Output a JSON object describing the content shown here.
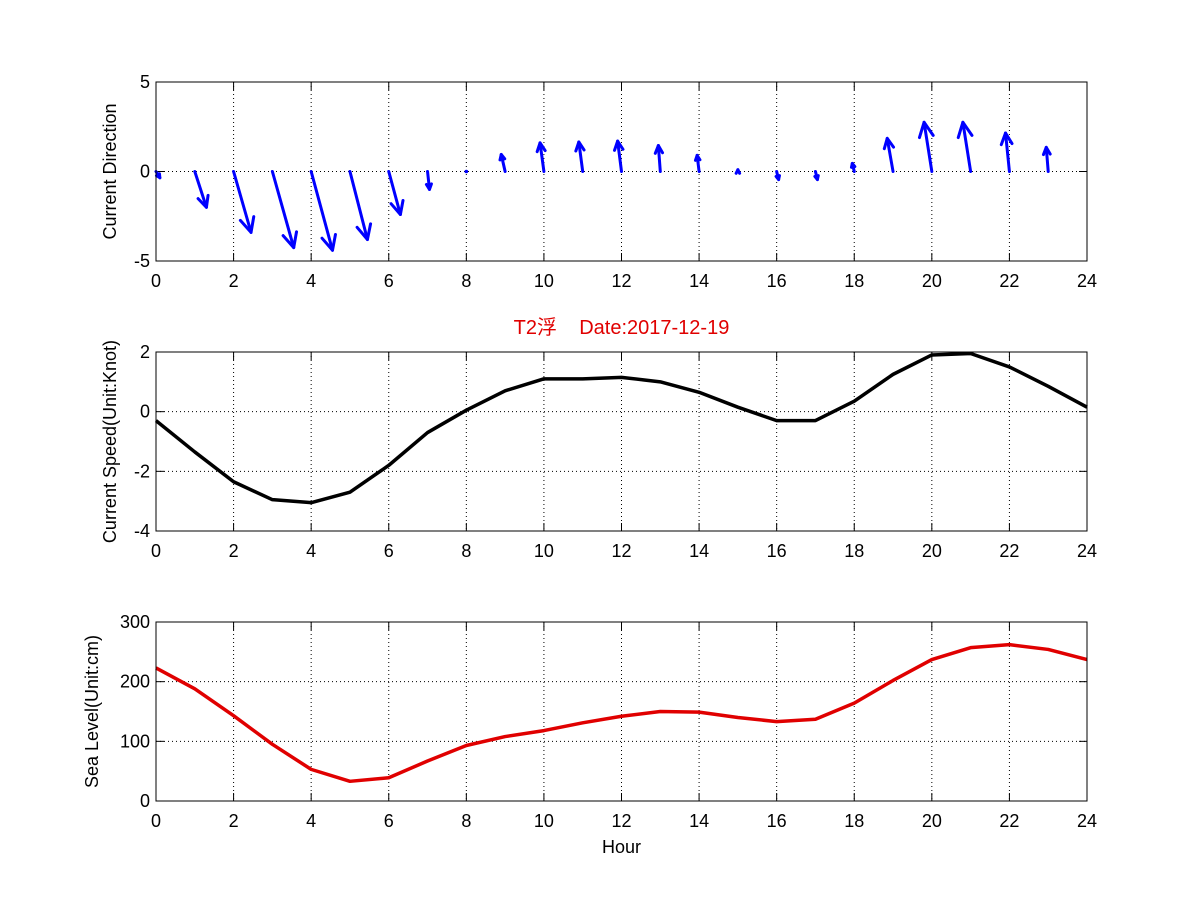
{
  "chart_data": [
    {
      "type": "quiver",
      "title": "",
      "xlabel": "",
      "ylabel": "Current Direction",
      "xlim": [
        0,
        24
      ],
      "ylim": [
        -5,
        5
      ],
      "xticks": [
        0,
        2,
        4,
        6,
        8,
        10,
        12,
        14,
        16,
        18,
        20,
        22,
        24
      ],
      "yticks": [
        -5,
        0,
        5
      ],
      "grid": true,
      "color": "#0000ff",
      "vectors": [
        {
          "x": 0,
          "u": 0.1,
          "v": -0.35
        },
        {
          "x": 1,
          "u": 0.3,
          "v": -2.0
        },
        {
          "x": 2,
          "u": 0.45,
          "v": -3.4
        },
        {
          "x": 3,
          "u": 0.55,
          "v": -4.25
        },
        {
          "x": 4,
          "u": 0.55,
          "v": -4.4
        },
        {
          "x": 5,
          "u": 0.45,
          "v": -3.8
        },
        {
          "x": 6,
          "u": 0.3,
          "v": -2.4
        },
        {
          "x": 7,
          "u": 0.05,
          "v": -1.0
        },
        {
          "x": 8,
          "u": 0.0,
          "v": 0.05
        },
        {
          "x": 9,
          "u": -0.1,
          "v": 0.95
        },
        {
          "x": 10,
          "u": -0.1,
          "v": 1.6
        },
        {
          "x": 11,
          "u": -0.1,
          "v": 1.65
        },
        {
          "x": 12,
          "u": -0.1,
          "v": 1.7
        },
        {
          "x": 13,
          "u": -0.05,
          "v": 1.45
        },
        {
          "x": 14,
          "u": -0.05,
          "v": 0.9
        },
        {
          "x": 15,
          "u": 0.0,
          "v": 0.1
        },
        {
          "x": 16,
          "u": 0.05,
          "v": -0.45
        },
        {
          "x": 17,
          "u": 0.05,
          "v": -0.45
        },
        {
          "x": 18,
          "u": -0.05,
          "v": 0.45
        },
        {
          "x": 19,
          "u": -0.15,
          "v": 1.85
        },
        {
          "x": 20,
          "u": -0.2,
          "v": 2.75
        },
        {
          "x": 21,
          "u": -0.2,
          "v": 2.75
        },
        {
          "x": 22,
          "u": -0.1,
          "v": 2.15
        },
        {
          "x": 23,
          "u": -0.05,
          "v": 1.35
        }
      ]
    },
    {
      "type": "line",
      "title": "T2浮    Date:2017-12-19",
      "xlabel": "",
      "ylabel": "Current Speed(Unit:Knot)",
      "xlim": [
        0,
        24
      ],
      "ylim": [
        -4,
        2
      ],
      "xticks": [
        0,
        2,
        4,
        6,
        8,
        10,
        12,
        14,
        16,
        18,
        20,
        22,
        24
      ],
      "yticks": [
        -4,
        -2,
        0,
        2
      ],
      "grid": true,
      "title_color": "#e00000",
      "color": "#000000",
      "x": [
        0,
        1,
        2,
        3,
        4,
        5,
        6,
        7,
        8,
        9,
        10,
        11,
        12,
        13,
        14,
        15,
        16,
        17,
        18,
        19,
        20,
        21,
        22,
        23,
        24
      ],
      "y": [
        -0.3,
        -1.35,
        -2.35,
        -2.95,
        -3.05,
        -2.7,
        -1.8,
        -0.7,
        0.05,
        0.7,
        1.1,
        1.1,
        1.15,
        1.0,
        0.65,
        0.15,
        -0.3,
        -0.3,
        0.35,
        1.25,
        1.9,
        1.95,
        1.5,
        0.85,
        0.15
      ]
    },
    {
      "type": "line",
      "title": "",
      "xlabel": "Hour",
      "ylabel": "Sea Level(Unit:cm)",
      "xlim": [
        0,
        24
      ],
      "ylim": [
        0,
        300
      ],
      "xticks": [
        0,
        2,
        4,
        6,
        8,
        10,
        12,
        14,
        16,
        18,
        20,
        22,
        24
      ],
      "yticks": [
        0,
        100,
        200,
        300
      ],
      "grid": true,
      "color": "#e00000",
      "x": [
        0,
        1,
        2,
        3,
        4,
        5,
        6,
        7,
        8,
        9,
        10,
        11,
        12,
        13,
        14,
        15,
        16,
        17,
        18,
        19,
        20,
        21,
        22,
        23,
        24
      ],
      "y": [
        223,
        188,
        143,
        95,
        53,
        33,
        39,
        67,
        93,
        108,
        118,
        131,
        142,
        150,
        149,
        140,
        133,
        137,
        164,
        202,
        237,
        257,
        262,
        254,
        237
      ]
    }
  ]
}
